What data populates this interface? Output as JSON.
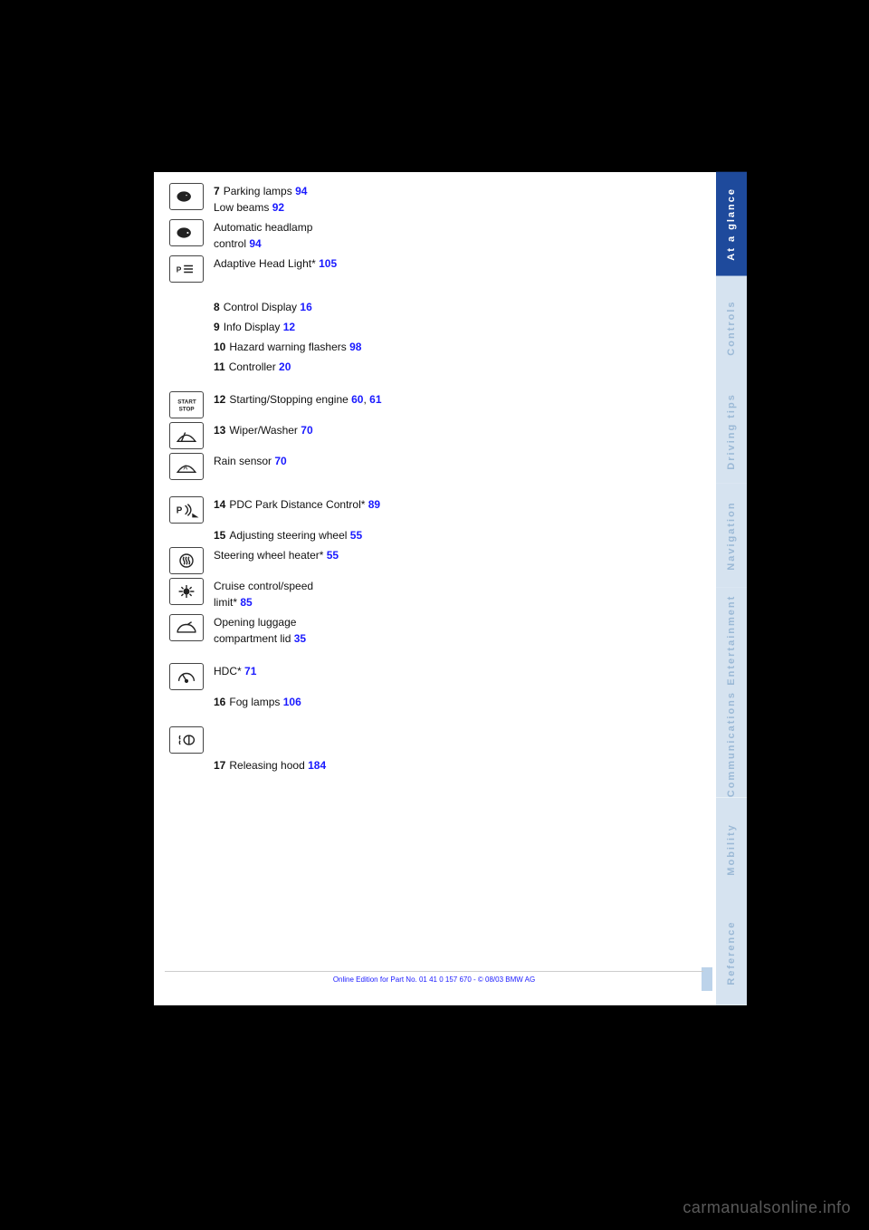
{
  "tabs": [
    {
      "label": "At a glance",
      "active": true
    },
    {
      "label": "Controls",
      "active": false
    },
    {
      "label": "Driving tips",
      "active": false
    },
    {
      "label": "Navigation",
      "active": false
    },
    {
      "label": "Entertainment",
      "active": false
    },
    {
      "label": "Communications",
      "active": false
    },
    {
      "label": "Mobility",
      "active": false
    },
    {
      "label": "Reference",
      "active": false
    }
  ],
  "items": [
    {
      "n": "7",
      "icon": "lowbeam",
      "text_a": "Parking lamps ",
      "ref_a": "94",
      "text_b": "\nLow beams ",
      "ref_b": "92"
    },
    {
      "n": "",
      "icon": "autolight",
      "text_a": "Automatic headlamp\ncontrol ",
      "ref_a": "94"
    },
    {
      "n": "",
      "icon": "adaptive",
      "text_a": "Adaptive Head Light* ",
      "ref_a": "105"
    },
    {
      "n": "8",
      "icon": null,
      "text_a": "Control Display ",
      "ref_a": "16"
    },
    {
      "n": "9",
      "icon": null,
      "text_a": "Info Display ",
      "ref_a": "12"
    },
    {
      "n": "10",
      "icon": null,
      "text_a": "Hazard warning flashers ",
      "ref_a": "98"
    },
    {
      "n": "11",
      "icon": null,
      "text_a": "Controller ",
      "ref_a": "20"
    },
    {
      "n": "12",
      "icon": "startstop",
      "text_a": "Starting/Stopping engine ",
      "ref_a": "60",
      "text_b": ", ",
      "ref_b": "61"
    },
    {
      "n": "13",
      "icon": "wiper",
      "text_a": "Wiper/Washer ",
      "ref_a": "70"
    },
    {
      "n": "",
      "icon": "rainwiper",
      "text_a": "Rain sensor ",
      "ref_a": "70"
    },
    {
      "n": "14",
      "icon": "pdc",
      "text_a": "PDC Park Distance Control* ",
      "ref_a": "89"
    },
    {
      "n": "15",
      "icon": null,
      "text_a": "Adjusting steering wheel ",
      "ref_a": "55"
    },
    {
      "n": "",
      "icon": "heatwheel",
      "text_a": "Steering wheel heater* ",
      "ref_a": "55"
    },
    {
      "n": "",
      "icon": "cruise",
      "text_a": "Cruise control/speed\nlimit* ",
      "ref_a": "85"
    },
    {
      "n": "",
      "icon": "trunk",
      "text_a": "Opening luggage\ncompartment lid ",
      "ref_a": "35"
    },
    {
      "n": "",
      "icon": "gauge",
      "text_a": "HDC* ",
      "ref_a": "71"
    },
    {
      "n": "16",
      "icon": null,
      "text_a": "Fog lamps ",
      "ref_a": "106"
    },
    {
      "n": "",
      "icon": "foglamp",
      "text_a": "",
      "ref_a": ""
    },
    {
      "n": "17",
      "icon": null,
      "text_a": "Releasing hood ",
      "ref_a": "184"
    }
  ],
  "footer": "Online Edition for Part No. 01 41 0 157 670 - © 08/03 BMW AG",
  "watermark": "carmanualsonline.info"
}
